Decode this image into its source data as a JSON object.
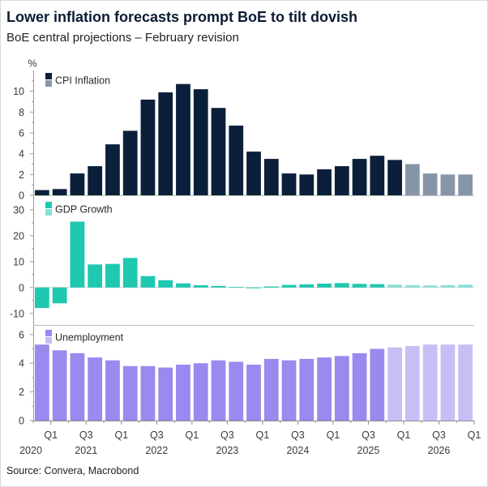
{
  "header": {
    "title": "Lower inflation forecasts prompt BoE to tilt dovish",
    "subtitle": "BoE central projections – February revision"
  },
  "source": "Source: Convera, Macrobond",
  "chart_data": [
    {
      "type": "bar",
      "ylabel": "%",
      "ylim": [
        0,
        12
      ],
      "yticks": [
        0,
        2,
        4,
        6,
        8,
        10
      ],
      "grid": false,
      "legend": "top-left",
      "colors": {
        "actual": "#0b1f3a",
        "projection": "#8796a7"
      },
      "x": [
        "2020 Q4",
        "2021 Q1",
        "2021 Q2",
        "2021 Q3",
        "2021 Q4",
        "2022 Q1",
        "2022 Q2",
        "2022 Q3",
        "2022 Q4",
        "2023 Q1",
        "2023 Q2",
        "2023 Q3",
        "2023 Q4",
        "2024 Q1",
        "2024 Q2",
        "2024 Q3",
        "2024 Q4",
        "2025 Q1",
        "2025 Q2",
        "2025 Q3",
        "2025 Q4",
        "2026 Q1",
        "2026 Q2",
        "2026 Q3",
        "2026 Q4"
      ],
      "series": [
        {
          "name": "CPI Inflation",
          "values": [
            0.5,
            0.6,
            2.1,
            2.8,
            4.9,
            6.2,
            9.2,
            9.9,
            10.7,
            10.2,
            8.4,
            6.7,
            4.2,
            3.5,
            2.1,
            2.0,
            2.5,
            2.8,
            3.5,
            3.8,
            3.4,
            3.0,
            2.1,
            2.0,
            2.0
          ],
          "projected": [
            false,
            false,
            false,
            false,
            false,
            false,
            false,
            false,
            false,
            false,
            false,
            false,
            false,
            false,
            false,
            false,
            false,
            false,
            false,
            false,
            false,
            true,
            true,
            true,
            true
          ]
        }
      ]
    },
    {
      "type": "bar",
      "ylim": [
        -13.5,
        34
      ],
      "yticks": [
        -10,
        0,
        10,
        20,
        30
      ],
      "grid": false,
      "legend": "top-left",
      "colors": {
        "actual": "#1ec8b1",
        "projection": "#88e1d6"
      },
      "x": [
        "2020 Q4",
        "2021 Q1",
        "2021 Q2",
        "2021 Q3",
        "2021 Q4",
        "2022 Q1",
        "2022 Q2",
        "2022 Q3",
        "2022 Q4",
        "2023 Q1",
        "2023 Q2",
        "2023 Q3",
        "2023 Q4",
        "2024 Q1",
        "2024 Q2",
        "2024 Q3",
        "2024 Q4",
        "2025 Q1",
        "2025 Q2",
        "2025 Q3",
        "2025 Q4",
        "2026 Q1",
        "2026 Q2",
        "2026 Q3",
        "2026 Q4"
      ],
      "series": [
        {
          "name": "GDP Growth",
          "values": [
            -7.9,
            -6.1,
            25.4,
            8.9,
            9.1,
            11.4,
            4.4,
            2.8,
            1.6,
            0.9,
            0.6,
            0.2,
            -0.3,
            0.4,
            1.0,
            1.2,
            1.5,
            1.7,
            1.4,
            1.3,
            1.1,
            0.9,
            0.8,
            0.9,
            1.1
          ],
          "projected": [
            false,
            false,
            false,
            false,
            false,
            false,
            false,
            false,
            false,
            false,
            false,
            false,
            false,
            false,
            false,
            false,
            false,
            false,
            false,
            false,
            true,
            true,
            true,
            true,
            true
          ]
        }
      ]
    },
    {
      "type": "bar",
      "ylim": [
        0,
        6.5
      ],
      "yticks": [
        0,
        2,
        4,
        6
      ],
      "grid": false,
      "legend": "top-left",
      "colors": {
        "actual": "#9a89ee",
        "projection": "#c8bef6"
      },
      "x": [
        "2020 Q4",
        "2021 Q1",
        "2021 Q2",
        "2021 Q3",
        "2021 Q4",
        "2022 Q1",
        "2022 Q2",
        "2022 Q3",
        "2022 Q4",
        "2023 Q1",
        "2023 Q2",
        "2023 Q3",
        "2023 Q4",
        "2024 Q1",
        "2024 Q2",
        "2024 Q3",
        "2024 Q4",
        "2025 Q1",
        "2025 Q2",
        "2025 Q3",
        "2025 Q4",
        "2026 Q1",
        "2026 Q2",
        "2026 Q3",
        "2026 Q4"
      ],
      "series": [
        {
          "name": "Unemployment",
          "values": [
            5.3,
            4.9,
            4.7,
            4.4,
            4.2,
            3.8,
            3.8,
            3.7,
            3.9,
            4.0,
            4.2,
            4.1,
            3.9,
            4.3,
            4.2,
            4.3,
            4.4,
            4.5,
            4.7,
            5.0,
            5.1,
            5.2,
            5.3,
            5.3,
            5.3
          ],
          "projected": [
            false,
            false,
            false,
            false,
            false,
            false,
            false,
            false,
            false,
            false,
            false,
            false,
            false,
            false,
            false,
            false,
            false,
            false,
            false,
            false,
            true,
            true,
            true,
            true,
            true
          ]
        }
      ],
      "xaxis": {
        "tick_labels": [
          {
            "at": "2021 Q1",
            "label": "Q1"
          },
          {
            "at": "2021 Q3",
            "label": "Q3"
          },
          {
            "at": "2022 Q1",
            "label": "Q1"
          },
          {
            "at": "2022 Q3",
            "label": "Q3"
          },
          {
            "at": "2023 Q1",
            "label": "Q1"
          },
          {
            "at": "2023 Q3",
            "label": "Q3"
          },
          {
            "at": "2024 Q1",
            "label": "Q1"
          },
          {
            "at": "2024 Q3",
            "label": "Q3"
          },
          {
            "at": "2025 Q1",
            "label": "Q1"
          },
          {
            "at": "2025 Q3",
            "label": "Q3"
          },
          {
            "at": "2026 Q1",
            "label": "Q1"
          },
          {
            "at": "2026 Q3",
            "label": "Q3"
          },
          {
            "at": "2027 Q1",
            "label": "Q1"
          }
        ],
        "year_labels": [
          "2020",
          "2021",
          "2022",
          "2023",
          "2024",
          "2025",
          "2026"
        ]
      }
    }
  ]
}
